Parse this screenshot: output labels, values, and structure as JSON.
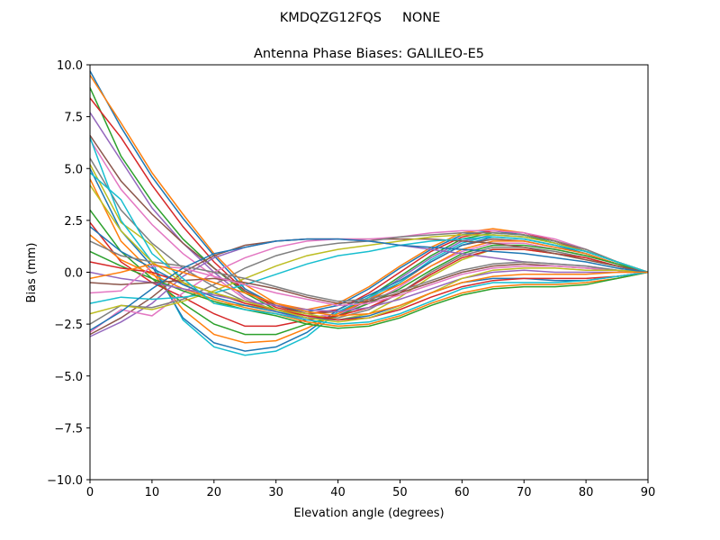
{
  "chart_data": {
    "type": "line",
    "suptitle": "KMDQZG12FQS     NONE",
    "title": "Antenna Phase Biases: GALILEO-E5",
    "xlabel": "Elevation angle (degrees)",
    "ylabel": "Bias (mm)",
    "xlim": [
      0,
      90
    ],
    "ylim": [
      -10,
      10
    ],
    "xticks": [
      0,
      10,
      20,
      30,
      40,
      50,
      60,
      70,
      80,
      90
    ],
    "xtick_labels": [
      "0",
      "10",
      "20",
      "30",
      "40",
      "50",
      "60",
      "70",
      "80",
      "90"
    ],
    "yticks": [
      -10,
      -7.5,
      -5,
      -2.5,
      0,
      2.5,
      5,
      7.5,
      10
    ],
    "ytick_labels": [
      "−10.0",
      "−7.5",
      "−5.0",
      "−2.5",
      "0.0",
      "2.5",
      "5.0",
      "7.5",
      "10.0"
    ],
    "grid": false,
    "legend": "none",
    "x": [
      0,
      5,
      10,
      15,
      20,
      25,
      30,
      35,
      40,
      45,
      50,
      55,
      60,
      65,
      70,
      75,
      80,
      85,
      90
    ],
    "colors": [
      "#1f77b4",
      "#ff7f0e",
      "#2ca02c",
      "#d62728",
      "#9467bd",
      "#8c564b",
      "#e377c2",
      "#7f7f7f",
      "#bcbd22",
      "#17becf"
    ],
    "series": [
      [
        9.7,
        7.0,
        4.6,
        2.6,
        0.8,
        -0.8,
        -1.6,
        -1.9,
        -1.6,
        -0.8,
        0.2,
        1.1,
        1.8,
        2.0,
        1.8,
        1.5,
        1.0,
        0.5,
        0
      ],
      [
        9.5,
        7.2,
        4.8,
        2.8,
        0.9,
        -0.6,
        -1.5,
        -1.8,
        -1.5,
        -0.7,
        0.3,
        1.2,
        1.9,
        2.1,
        1.9,
        1.5,
        1.1,
        0.5,
        0
      ],
      [
        8.9,
        5.6,
        3.4,
        1.6,
        0.2,
        -1.0,
        -1.8,
        -2.2,
        -2.0,
        -1.2,
        -0.2,
        0.8,
        1.6,
        1.9,
        1.8,
        1.4,
        1.0,
        0.5,
        0
      ],
      [
        8.4,
        6.5,
        4.2,
        2.2,
        0.5,
        -0.9,
        -1.7,
        -2.0,
        -1.8,
        -1.0,
        0.0,
        1.0,
        1.7,
        2.0,
        1.9,
        1.5,
        1.0,
        0.5,
        0
      ],
      [
        7.7,
        5.4,
        3.1,
        1.4,
        0.0,
        -1.2,
        -1.9,
        -2.3,
        -2.1,
        -1.3,
        -0.3,
        0.7,
        1.5,
        1.8,
        1.7,
        1.4,
        1.0,
        0.5,
        0
      ],
      [
        6.6,
        4.4,
        2.8,
        1.4,
        0.2,
        -0.9,
        -1.6,
        -2.0,
        -1.9,
        -1.4,
        -0.5,
        0.5,
        1.3,
        1.6,
        1.5,
        1.2,
        0.9,
        0.4,
        0
      ],
      [
        6.4,
        4.0,
        2.3,
        0.9,
        -0.2,
        -1.3,
        -1.9,
        -2.2,
        -2.0,
        -1.5,
        -0.7,
        0.3,
        1.0,
        1.4,
        1.4,
        1.1,
        0.8,
        0.4,
        0
      ],
      [
        5.5,
        3.0,
        1.4,
        0.2,
        -0.7,
        -1.4,
        -1.8,
        -2.1,
        -2.2,
        -1.8,
        -1.0,
        0.0,
        0.8,
        1.2,
        1.2,
        1.0,
        0.7,
        0.3,
        0
      ],
      [
        5.2,
        2.4,
        1.3,
        -0.5,
        -1.5,
        -1.6,
        -1.8,
        -2.0,
        -2.3,
        -2.0,
        -1.2,
        -0.2,
        0.6,
        1.1,
        1.1,
        0.9,
        0.6,
        0.3,
        0
      ],
      [
        6.5,
        2.5,
        0.5,
        -2.3,
        -3.6,
        -4.0,
        -3.8,
        -3.1,
        -1.9,
        -1.2,
        -0.5,
        0.6,
        1.4,
        1.8,
        1.7,
        1.4,
        1.0,
        0.5,
        0
      ],
      [
        5.0,
        2.0,
        0.3,
        -2.2,
        -3.4,
        -3.8,
        -3.6,
        -2.9,
        -1.8,
        -1.1,
        -0.4,
        0.5,
        1.3,
        1.7,
        1.6,
        1.3,
        0.9,
        0.4,
        0
      ],
      [
        4.5,
        1.5,
        0.0,
        -1.8,
        -3.0,
        -3.4,
        -3.3,
        -2.7,
        -2.0,
        -1.3,
        -0.6,
        0.3,
        1.1,
        1.5,
        1.5,
        1.2,
        0.9,
        0.4,
        0
      ],
      [
        3.0,
        1.0,
        -0.3,
        -1.5,
        -2.5,
        -3.0,
        -3.0,
        -2.5,
        -2.1,
        -1.5,
        -0.8,
        0.1,
        0.9,
        1.3,
        1.3,
        1.1,
        0.8,
        0.4,
        0
      ],
      [
        2.4,
        0.5,
        -0.5,
        -1.2,
        -2.0,
        -2.6,
        -2.6,
        -2.3,
        -2.1,
        -1.7,
        -1.0,
        -0.1,
        0.7,
        1.1,
        1.1,
        0.9,
        0.7,
        0.3,
        0
      ],
      [
        -3.1,
        -2.4,
        -1.5,
        -0.2,
        0.7,
        1.2,
        1.5,
        1.6,
        1.6,
        1.5,
        1.3,
        1.1,
        0.9,
        0.7,
        0.5,
        0.4,
        0.3,
        0.1,
        0
      ],
      [
        -3.0,
        -2.2,
        -1.2,
        0.0,
        0.8,
        1.3,
        1.5,
        1.6,
        1.6,
        1.6,
        1.6,
        1.6,
        1.5,
        1.4,
        1.2,
        0.9,
        0.6,
        0.3,
        0
      ],
      [
        -2.9,
        -1.8,
        -2.1,
        -1.0,
        0.0,
        0.7,
        1.2,
        1.5,
        1.6,
        1.6,
        1.7,
        1.9,
        2.0,
        2.0,
        1.9,
        1.6,
        1.1,
        0.5,
        0
      ],
      [
        -2.5,
        -1.6,
        -1.7,
        -1.3,
        -0.6,
        0.2,
        0.8,
        1.2,
        1.4,
        1.5,
        1.7,
        1.8,
        1.9,
        1.9,
        1.8,
        1.5,
        1.1,
        0.5,
        0
      ],
      [
        -2.0,
        -1.6,
        -1.8,
        -1.4,
        -0.9,
        -0.3,
        0.3,
        0.8,
        1.1,
        1.3,
        1.5,
        1.7,
        1.8,
        1.8,
        1.7,
        1.4,
        1.0,
        0.5,
        0
      ],
      [
        -1.5,
        -1.2,
        -1.3,
        -1.2,
        -1.0,
        -0.6,
        -0.1,
        0.4,
        0.8,
        1.0,
        1.3,
        1.5,
        1.6,
        1.7,
        1.6,
        1.3,
        1.0,
        0.5,
        0
      ],
      [
        2.2,
        1.0,
        0.2,
        -0.6,
        -1.2,
        -1.6,
        -1.9,
        -2.2,
        -2.3,
        -2.1,
        -1.6,
        -1.0,
        -0.5,
        -0.3,
        -0.3,
        -0.4,
        -0.4,
        -0.2,
        0
      ],
      [
        1.8,
        0.6,
        -0.1,
        -0.8,
        -1.3,
        -1.7,
        -2.0,
        -2.4,
        -2.6,
        -2.5,
        -2.1,
        -1.5,
        -1.0,
        -0.7,
        -0.6,
        -0.6,
        -0.5,
        -0.3,
        0
      ],
      [
        1.0,
        0.3,
        -0.3,
        -0.9,
        -1.4,
        -1.8,
        -2.1,
        -2.5,
        -2.7,
        -2.6,
        -2.2,
        -1.6,
        -1.1,
        -0.8,
        -0.7,
        -0.7,
        -0.6,
        -0.3,
        0
      ],
      [
        0.5,
        0.2,
        0.0,
        -0.5,
        -1.0,
        -1.5,
        -1.8,
        -2.1,
        -2.3,
        -2.2,
        -1.8,
        -1.2,
        -0.7,
        -0.4,
        -0.3,
        -0.3,
        -0.3,
        -0.2,
        0
      ],
      [
        0.0,
        -0.3,
        -0.5,
        -0.8,
        -1.1,
        -1.4,
        -1.6,
        -1.8,
        -1.9,
        -1.7,
        -1.3,
        -0.8,
        -0.3,
        0.0,
        0.1,
        0.0,
        0.0,
        0.0,
        0
      ],
      [
        -0.5,
        -0.6,
        -0.5,
        -0.4,
        -0.3,
        -0.5,
        -0.8,
        -1.2,
        -1.5,
        -1.4,
        -1.0,
        -0.5,
        0.0,
        0.3,
        0.4,
        0.3,
        0.2,
        0.1,
        0
      ],
      [
        -1.0,
        -0.9,
        0.3,
        0.2,
        -0.2,
        -0.6,
        -1.0,
        -1.3,
        -1.6,
        -1.5,
        -1.1,
        -0.6,
        -0.1,
        0.2,
        0.3,
        0.3,
        0.2,
        0.1,
        0
      ],
      [
        1.5,
        0.8,
        0.5,
        0.3,
        0.0,
        -0.3,
        -0.7,
        -1.1,
        -1.4,
        -1.3,
        -0.9,
        -0.4,
        0.1,
        0.4,
        0.5,
        0.4,
        0.3,
        0.1,
        0
      ],
      [
        4.2,
        2.0,
        0.5,
        -0.5,
        -1.0,
        -1.4,
        -1.8,
        -2.2,
        -2.4,
        -2.2,
        -1.7,
        -1.0,
        -0.3,
        0.1,
        0.2,
        0.2,
        0.1,
        0.1,
        0
      ],
      [
        4.8,
        3.5,
        0.9,
        -0.3,
        -1.5,
        -1.8,
        -2.0,
        -2.3,
        -2.5,
        -2.4,
        -2.0,
        -1.4,
        -0.8,
        -0.5,
        -0.5,
        -0.5,
        -0.4,
        -0.2,
        0
      ],
      [
        -2.8,
        -1.9,
        -0.8,
        0.2,
        0.9,
        1.2,
        1.5,
        1.6,
        1.6,
        1.5,
        1.3,
        1.2,
        1.1,
        1.0,
        0.9,
        0.7,
        0.5,
        0.2,
        0
      ],
      [
        -0.3,
        0.0,
        0.4,
        0.0,
        -0.5,
        -1.0,
        -1.5,
        -1.9,
        -2.1,
        -2.0,
        -1.6,
        -1.0,
        -0.5,
        -0.2,
        -0.1,
        -0.1,
        -0.1,
        0.0,
        0
      ]
    ]
  }
}
